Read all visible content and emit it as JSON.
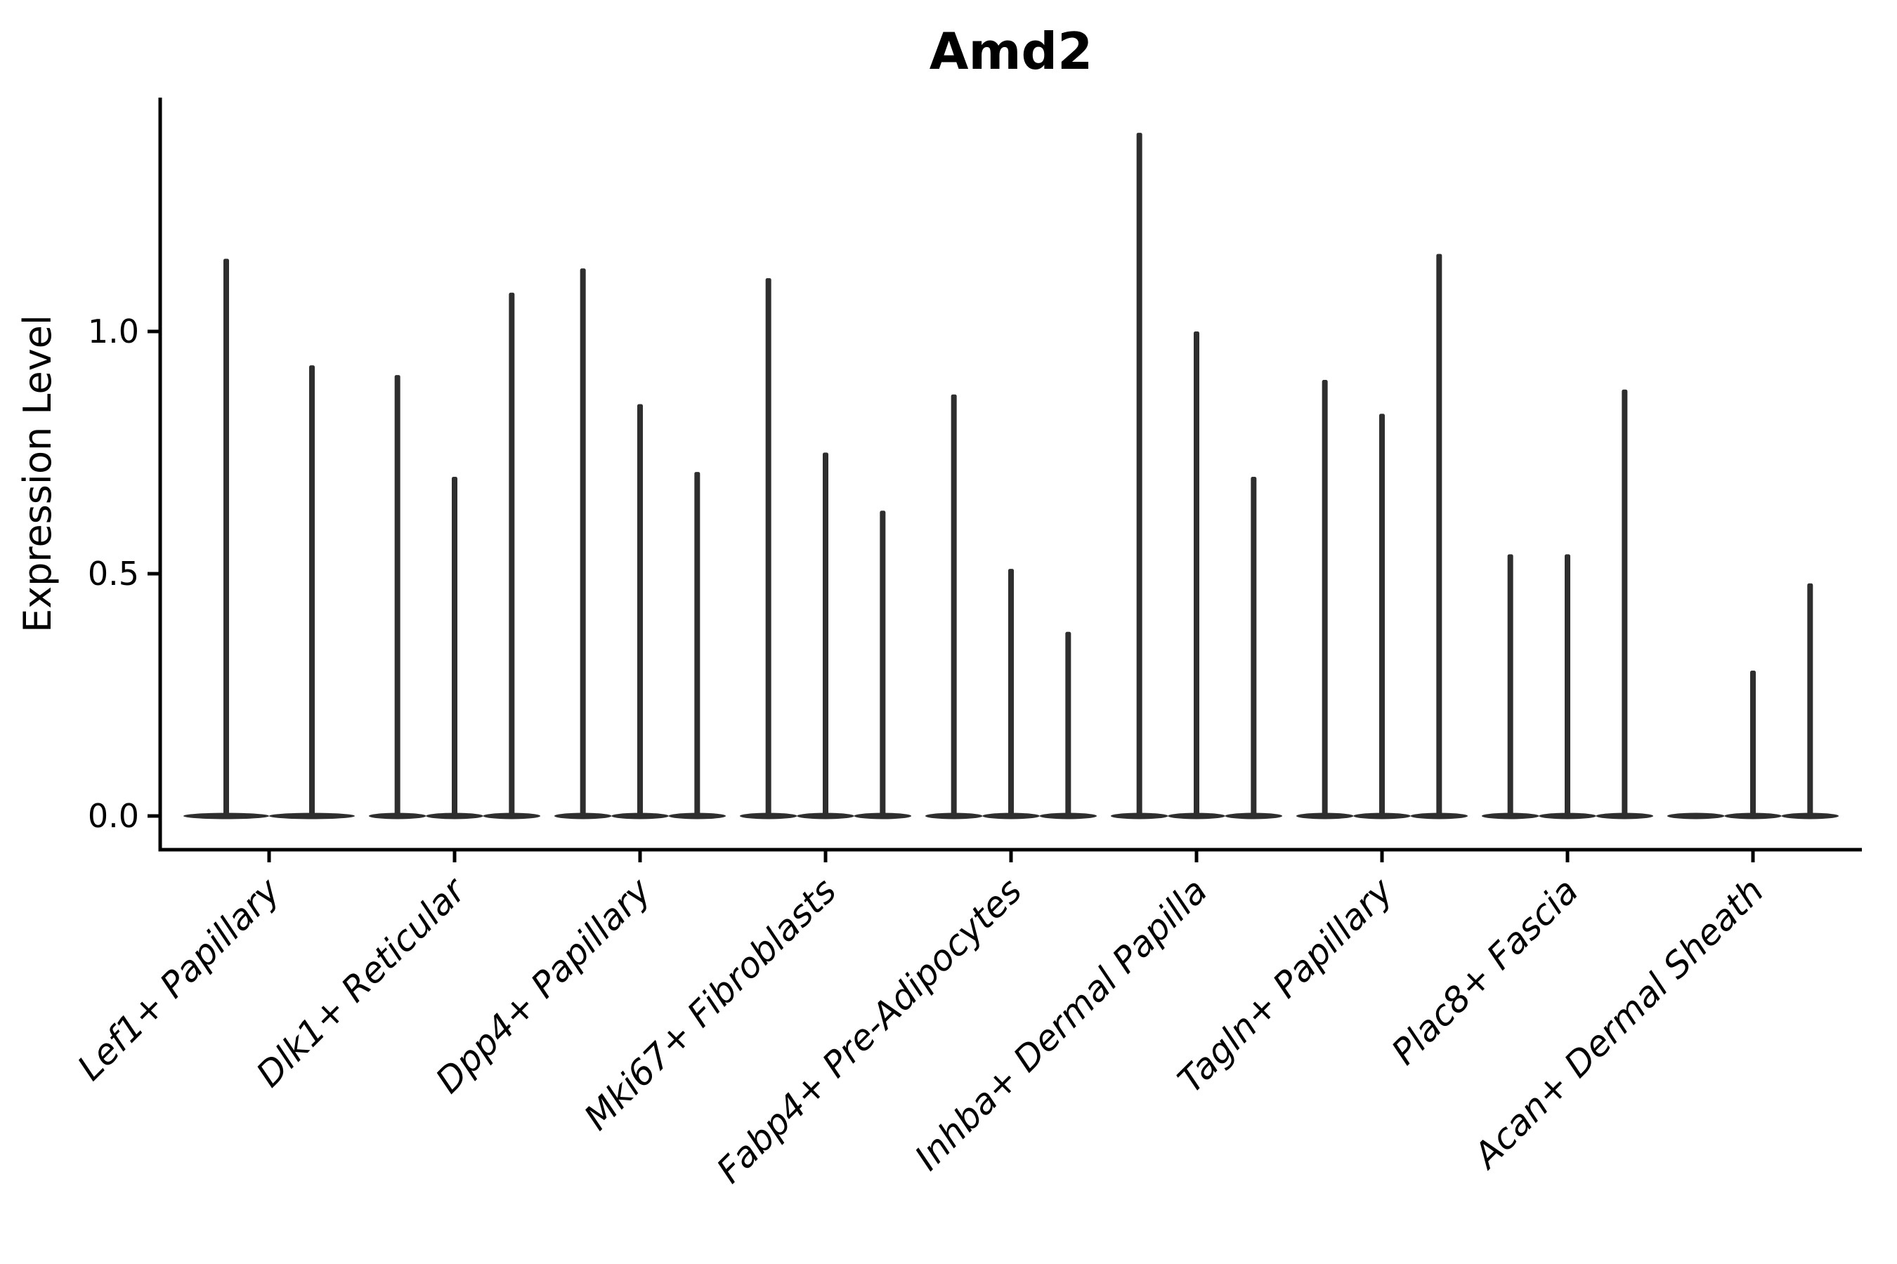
{
  "title": "Amd2",
  "axes": {
    "ylabel": "Expression Level",
    "ytick_labels": [
      "0.0",
      "0.5",
      "1.0"
    ]
  },
  "chart_data": {
    "type": "violin",
    "title": "Amd2",
    "xlabel": "",
    "ylabel": "Expression Level",
    "ylim": [
      -0.07,
      1.48
    ],
    "yticks": [
      0.0,
      0.5,
      1.0
    ],
    "grid": false,
    "legend": "none",
    "style": "zero-inflated violins (flat body at 0 with thin spike to max), dark charcoal fill, only left and bottom spines, x labels italic rotated 45deg",
    "categories": [
      "Lef1+ Papillary",
      "Dlk1+ Reticular",
      "Dpp4+ Papillary",
      "Mki67+ Fibroblasts",
      "Fabp4+ Pre-Adipocytes",
      "Inhba+ Dermal Papilla",
      "Tagln+ Papillary",
      "Plac8+ Fascia",
      "Acan+ Dermal Sheath"
    ],
    "groups": [
      {
        "category": "Lef1+ Papillary",
        "slots": 2,
        "violins": [
          {
            "slot": 0,
            "max": 1.15
          },
          {
            "slot": 1,
            "max": 0.93
          }
        ]
      },
      {
        "category": "Dlk1+ Reticular",
        "slots": 3,
        "violins": [
          {
            "slot": 0,
            "max": 0.91
          },
          {
            "slot": 1,
            "max": 0.7
          },
          {
            "slot": 2,
            "max": 1.08
          }
        ]
      },
      {
        "category": "Dpp4+ Papillary",
        "slots": 3,
        "violins": [
          {
            "slot": 0,
            "max": 1.13
          },
          {
            "slot": 1,
            "max": 0.85
          },
          {
            "slot": 2,
            "max": 0.71
          }
        ]
      },
      {
        "category": "Mki67+ Fibroblasts",
        "slots": 3,
        "violins": [
          {
            "slot": 0,
            "max": 1.11
          },
          {
            "slot": 1,
            "max": 0.75
          },
          {
            "slot": 2,
            "max": 0.63
          }
        ]
      },
      {
        "category": "Fabp4+ Pre-Adipocytes",
        "slots": 3,
        "violins": [
          {
            "slot": 0,
            "max": 0.87
          },
          {
            "slot": 1,
            "max": 0.51
          },
          {
            "slot": 2,
            "max": 0.38
          }
        ]
      },
      {
        "category": "Inhba+ Dermal Papilla",
        "slots": 3,
        "violins": [
          {
            "slot": 0,
            "max": 1.41
          },
          {
            "slot": 1,
            "max": 1.0
          },
          {
            "slot": 2,
            "max": 0.7
          }
        ]
      },
      {
        "category": "Tagln+ Papillary",
        "slots": 3,
        "violins": [
          {
            "slot": 0,
            "max": 0.9
          },
          {
            "slot": 1,
            "max": 0.83
          },
          {
            "slot": 2,
            "max": 1.16
          }
        ]
      },
      {
        "category": "Plac8+ Fascia",
        "slots": 3,
        "violins": [
          {
            "slot": 0,
            "max": 0.54
          },
          {
            "slot": 1,
            "max": 0.54
          },
          {
            "slot": 2,
            "max": 0.88
          }
        ]
      },
      {
        "category": "Acan+ Dermal Sheath",
        "slots": 3,
        "violins": [
          {
            "slot": 0,
            "max": 0.0
          },
          {
            "slot": 1,
            "max": 0.3
          },
          {
            "slot": 2,
            "max": 0.48
          }
        ]
      }
    ],
    "colors": {
      "violin": "#2e2e2e",
      "axis": "#000000",
      "text": "#000000",
      "background": "#ffffff"
    }
  }
}
